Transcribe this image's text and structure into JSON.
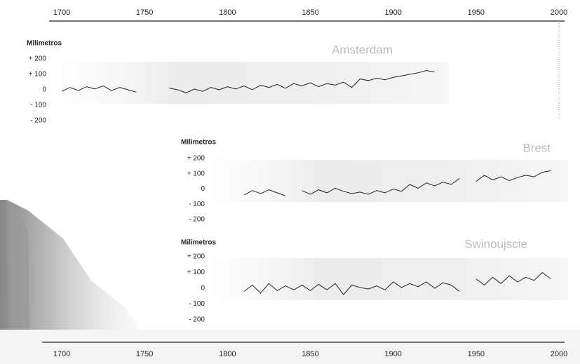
{
  "chart_data": [
    {
      "type": "line",
      "title": "Amsterdam",
      "y_label": "Milimetros",
      "xlim": [
        1700,
        2000
      ],
      "xticks": [
        1700,
        1750,
        1800,
        1850,
        1900,
        1950,
        2000
      ],
      "ylim": [
        -200,
        200
      ],
      "yticks": [
        {
          "value": 200,
          "label": "+ 200"
        },
        {
          "value": 100,
          "label": "+ 100"
        },
        0,
        {
          "value": -100,
          "label": "- 100"
        },
        {
          "value": -200,
          "label": "- 200"
        }
      ],
      "x": [
        1700,
        1705,
        1710,
        1715,
        1720,
        1725,
        1730,
        1735,
        1740,
        1745,
        1755,
        1765,
        1770,
        1775,
        1780,
        1785,
        1790,
        1795,
        1800,
        1805,
        1810,
        1815,
        1820,
        1825,
        1830,
        1835,
        1840,
        1845,
        1850,
        1855,
        1860,
        1865,
        1870,
        1875,
        1880,
        1885,
        1890,
        1895,
        1900,
        1905,
        1910,
        1915,
        1920,
        1925
      ],
      "values": [
        -10,
        15,
        -5,
        20,
        5,
        25,
        -5,
        15,
        0,
        -15,
        null,
        10,
        0,
        -20,
        5,
        -10,
        15,
        0,
        20,
        5,
        25,
        0,
        30,
        15,
        35,
        10,
        40,
        25,
        45,
        20,
        40,
        30,
        50,
        15,
        70,
        60,
        75,
        65,
        80,
        90,
        100,
        110,
        125,
        115
      ],
      "color": "#222"
    },
    {
      "type": "line",
      "title": "Brest",
      "y_label": "Milimetros",
      "xlim": [
        1700,
        2000
      ],
      "ylim": [
        -200,
        200
      ],
      "yticks": [
        {
          "value": 200,
          "label": "+ 200"
        },
        {
          "value": 100,
          "label": "+ 100"
        },
        0,
        {
          "value": -100,
          "label": "- 100"
        },
        {
          "value": -200,
          "label": "- 200"
        }
      ],
      "x": [
        1810,
        1815,
        1820,
        1825,
        1830,
        1835,
        1840,
        1845,
        1850,
        1855,
        1860,
        1865,
        1870,
        1875,
        1880,
        1885,
        1890,
        1895,
        1900,
        1905,
        1910,
        1915,
        1920,
        1925,
        1930,
        1935,
        1940,
        1945,
        1950,
        1955,
        1960,
        1965,
        1970,
        1975,
        1980,
        1985,
        1990,
        1995
      ],
      "values": [
        -40,
        -10,
        -30,
        -5,
        -25,
        -45,
        null,
        -10,
        -35,
        -5,
        -25,
        5,
        -15,
        -30,
        -20,
        -35,
        -10,
        -25,
        0,
        -15,
        30,
        5,
        40,
        20,
        45,
        30,
        70,
        null,
        50,
        90,
        60,
        80,
        55,
        75,
        90,
        80,
        110,
        120
      ],
      "color": "#222"
    },
    {
      "type": "line",
      "title": "Swinoujscie",
      "y_label": "Milimetros",
      "xlim": [
        1700,
        2000
      ],
      "xticks": [
        1700,
        1750,
        1800,
        1850,
        1900,
        1950,
        2000
      ],
      "ylim": [
        -200,
        200
      ],
      "yticks": [
        {
          "value": 200,
          "label": "+ 200"
        },
        {
          "value": 100,
          "label": "+ 100"
        },
        0,
        {
          "value": -100,
          "label": "- 100"
        },
        {
          "value": -200,
          "label": "- 200"
        }
      ],
      "x": [
        1810,
        1815,
        1820,
        1825,
        1830,
        1835,
        1840,
        1845,
        1850,
        1855,
        1860,
        1865,
        1870,
        1875,
        1880,
        1885,
        1890,
        1895,
        1900,
        1905,
        1910,
        1915,
        1920,
        1925,
        1930,
        1935,
        1940,
        1945,
        1950,
        1955,
        1960,
        1965,
        1970,
        1975,
        1980,
        1985,
        1990,
        1995
      ],
      "values": [
        -20,
        20,
        -30,
        30,
        -15,
        15,
        -10,
        20,
        -15,
        25,
        -10,
        30,
        -40,
        20,
        5,
        -5,
        15,
        -10,
        40,
        5,
        30,
        10,
        40,
        0,
        35,
        20,
        -20,
        null,
        60,
        20,
        70,
        30,
        80,
        40,
        70,
        50,
        100,
        60
      ],
      "color": "#222"
    }
  ]
}
